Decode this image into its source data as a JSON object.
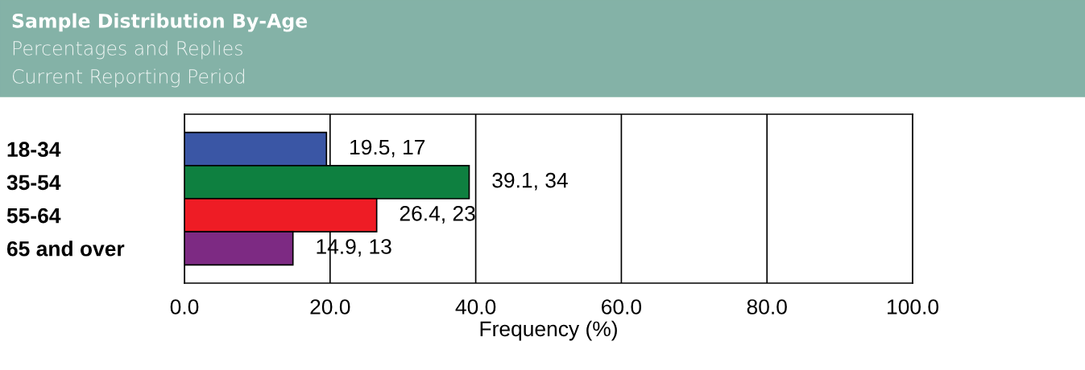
{
  "chart_data": {
    "type": "bar",
    "orientation": "horizontal",
    "title": "Sample Distribution By-Age",
    "subtitle": "Percentages and Replies",
    "annotations": [
      "Current Reporting Period"
    ],
    "categories": [
      "18-34",
      "35-54",
      "55-64",
      "65 and over"
    ],
    "values": [
      19.5,
      39.1,
      26.4,
      14.9
    ],
    "colors": [
      "#3a56a5",
      "#0e8040",
      "#ee1c25",
      "#7d2a83"
    ],
    "value_labels": [
      "19.5, 17",
      "39.1, 34",
      "26.4, 23",
      "14.9, 13"
    ],
    "xlabel": "Frequency (%)",
    "xlim": [
      0,
      100
    ],
    "xticks": [
      {
        "value": 0,
        "label": "0.0"
      },
      {
        "value": 20,
        "label": "20.0"
      },
      {
        "value": 40,
        "label": "40.0"
      },
      {
        "value": 60,
        "label": "60.0"
      },
      {
        "value": 80,
        "label": "80.0"
      },
      {
        "value": 100,
        "label": "100.0"
      }
    ],
    "grid": "x"
  }
}
